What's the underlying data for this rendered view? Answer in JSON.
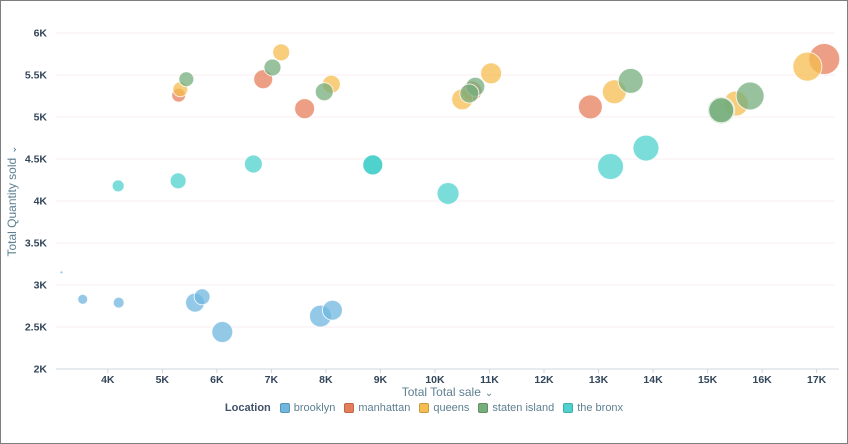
{
  "window": {
    "background": "#ffffff",
    "border_color": "#7e7e7e"
  },
  "colors": {
    "grid": "#f8edf1",
    "axis_line": "#ccd7e2",
    "tick_text": "#33465a",
    "axis_title_text": "#5d7f91",
    "legend_title_text": "#42526b",
    "legend_label_text": "#5d7f91"
  },
  "chart_data": {
    "type": "scatter",
    "subtype": "bubble",
    "title": "",
    "xlabel": "Total Total sale",
    "ylabel": "Total Quantity sold",
    "axis_caret": "⌄",
    "xlim": [
      3.05,
      17.41
    ],
    "ylim": [
      2,
      6
    ],
    "grid": true,
    "legend_title": "Location",
    "legend_position": "bottom",
    "x_ticks": [
      {
        "value": 4,
        "label": "4K"
      },
      {
        "value": 5,
        "label": "5K"
      },
      {
        "value": 6,
        "label": "6K"
      },
      {
        "value": 7,
        "label": "7K"
      },
      {
        "value": 8,
        "label": "8K"
      },
      {
        "value": 9,
        "label": "9K"
      },
      {
        "value": 10,
        "label": "10K"
      },
      {
        "value": 11,
        "label": "11K"
      },
      {
        "value": 12,
        "label": "12K"
      },
      {
        "value": 13,
        "label": "13K"
      },
      {
        "value": 14,
        "label": "14K"
      },
      {
        "value": 15,
        "label": "15K"
      },
      {
        "value": 16,
        "label": "16K"
      },
      {
        "value": 17,
        "label": "17K"
      }
    ],
    "y_ticks": [
      {
        "value": 2,
        "label": "2K"
      },
      {
        "value": 2.5,
        "label": "2.5K"
      },
      {
        "value": 3,
        "label": "3K"
      },
      {
        "value": 3.5,
        "label": "3.5K"
      },
      {
        "value": 4,
        "label": "4K"
      },
      {
        "value": 4.5,
        "label": "4.5K"
      },
      {
        "value": 5,
        "label": "5K"
      },
      {
        "value": 5.5,
        "label": "5.5K"
      },
      {
        "value": 6,
        "label": "6K"
      }
    ],
    "series": [
      {
        "name": "brooklyn",
        "color": "#6FB7DF",
        "points": [
          {
            "x": 3.15,
            "y": 3.15,
            "r": 1.5
          },
          {
            "x": 3.54,
            "y": 2.83,
            "r": 5
          },
          {
            "x": 4.2,
            "y": 2.79,
            "r": 5.5
          },
          {
            "x": 5.6,
            "y": 2.79,
            "r": 9.5
          },
          {
            "x": 5.73,
            "y": 2.86,
            "r": 8
          },
          {
            "x": 6.1,
            "y": 2.44,
            "r": 10.5
          },
          {
            "x": 7.9,
            "y": 2.63,
            "r": 11
          },
          {
            "x": 8.12,
            "y": 2.7,
            "r": 10
          }
        ]
      },
      {
        "name": "manhattan",
        "color": "#E57F5B",
        "points": [
          {
            "x": 5.3,
            "y": 5.26,
            "r": 7
          },
          {
            "x": 6.85,
            "y": 5.45,
            "r": 9.5
          },
          {
            "x": 7.61,
            "y": 5.1,
            "r": 10
          },
          {
            "x": 10.68,
            "y": 5.31,
            "r": 10
          },
          {
            "x": 12.85,
            "y": 5.12,
            "r": 12
          },
          {
            "x": 17.14,
            "y": 5.69,
            "r": 15.5
          }
        ]
      },
      {
        "name": "queens",
        "color": "#F6BC4F",
        "points": [
          {
            "x": 5.33,
            "y": 5.33,
            "r": 7.5
          },
          {
            "x": 7.18,
            "y": 5.77,
            "r": 8.5
          },
          {
            "x": 8.1,
            "y": 5.39,
            "r": 9
          },
          {
            "x": 10.5,
            "y": 5.21,
            "r": 10.5
          },
          {
            "x": 11.03,
            "y": 5.52,
            "r": 10.5
          },
          {
            "x": 13.29,
            "y": 5.3,
            "r": 12
          },
          {
            "x": 15.52,
            "y": 5.16,
            "r": 12.5
          },
          {
            "x": 16.83,
            "y": 5.6,
            "r": 14.5
          }
        ]
      },
      {
        "name": "staten island",
        "color": "#76AE7C",
        "points": [
          {
            "x": 5.44,
            "y": 5.45,
            "r": 7.5
          },
          {
            "x": 7.02,
            "y": 5.59,
            "r": 8.5
          },
          {
            "x": 7.97,
            "y": 5.3,
            "r": 9
          },
          {
            "x": 10.74,
            "y": 5.36,
            "r": 9.5
          },
          {
            "x": 10.63,
            "y": 5.28,
            "r": 9.5
          },
          {
            "x": 13.59,
            "y": 5.43,
            "r": 12.5
          },
          {
            "x": 15.25,
            "y": 5.08,
            "r": 13.5
          },
          {
            "x": 15.25,
            "y": 5.08,
            "r": 12.5
          },
          {
            "x": 15.78,
            "y": 5.25,
            "r": 14
          }
        ]
      },
      {
        "name": "the bronx",
        "color": "#4FD1CE",
        "points": [
          {
            "x": 4.19,
            "y": 4.18,
            "r": 6
          },
          {
            "x": 5.29,
            "y": 4.24,
            "r": 8
          },
          {
            "x": 6.67,
            "y": 4.44,
            "r": 9
          },
          {
            "x": 8.86,
            "y": 4.43,
            "r": 10,
            "opacity": 1
          },
          {
            "x": 10.24,
            "y": 4.09,
            "r": 11
          },
          {
            "x": 13.22,
            "y": 4.41,
            "r": 13
          },
          {
            "x": 13.87,
            "y": 4.63,
            "r": 13
          }
        ]
      }
    ]
  }
}
